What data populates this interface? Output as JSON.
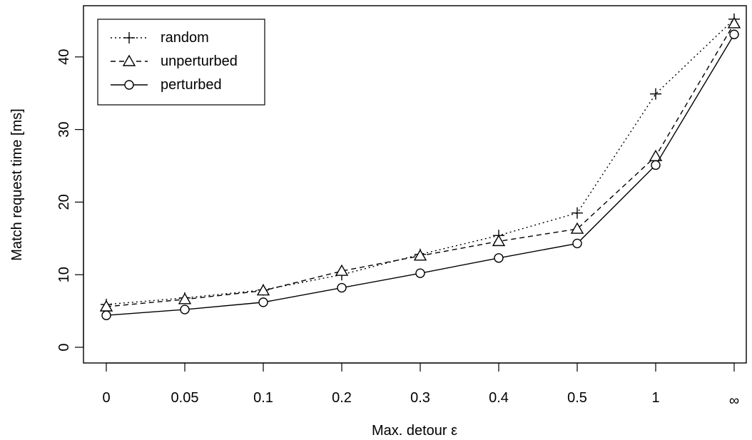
{
  "chart_data": {
    "type": "line",
    "categories": [
      "0",
      "0.05",
      "0.1",
      "0.2",
      "0.3",
      "0.4",
      "0.5",
      "1",
      "∞"
    ],
    "xlabel": "Max. detour ε",
    "ylabel": "Match request time [ms]",
    "ylim": [
      0,
      45
    ],
    "yticks": [
      0,
      10,
      20,
      30,
      40
    ],
    "grid": false,
    "legend_position": "top-left",
    "series": [
      {
        "name": "random",
        "marker": "plus",
        "line": "dotted",
        "values": [
          5.9,
          6.8,
          7.9,
          10.0,
          12.8,
          15.4,
          18.5,
          34.9,
          45.2
        ]
      },
      {
        "name": "unperturbed",
        "marker": "triangle",
        "line": "dashed",
        "values": [
          5.6,
          6.6,
          7.8,
          10.5,
          12.6,
          14.6,
          16.3,
          26.3,
          44.6
        ]
      },
      {
        "name": "perturbed",
        "marker": "circle",
        "line": "solid",
        "values": [
          4.4,
          5.2,
          6.2,
          8.2,
          10.2,
          12.3,
          14.3,
          25.1,
          43.1
        ]
      }
    ]
  }
}
